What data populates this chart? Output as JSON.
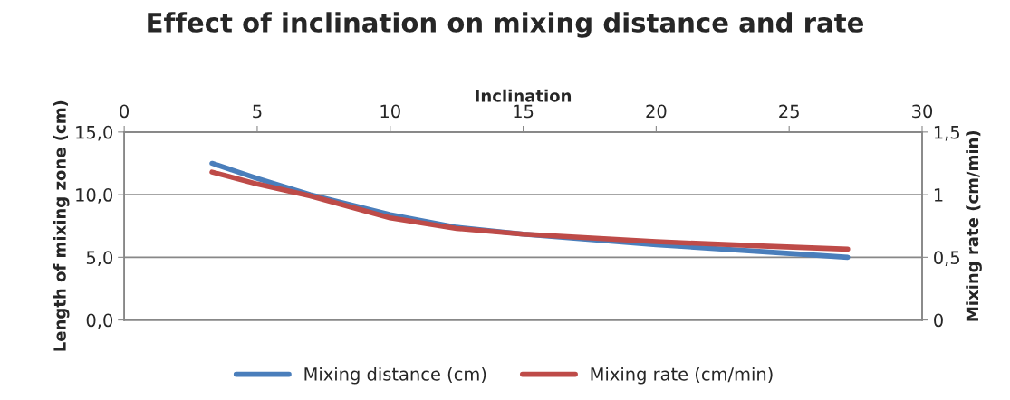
{
  "chart_data": {
    "type": "line",
    "title": "Effect of inclination on mixing distance and rate",
    "xlabel": "Inclination",
    "ylabel": "Length of mixing zone (cm)",
    "y2label": "Mixing rate (cm/min)",
    "series": [
      {
        "name": "Mixing distance (cm)",
        "color": "#4a7ebb",
        "x": [
          3.3,
          5,
          7,
          10,
          12.5,
          15,
          20,
          24,
          27.2
        ],
        "values": [
          12.5,
          11.3,
          10.0,
          8.4,
          7.4,
          6.85,
          6.0,
          5.45,
          5.0
        ]
      },
      {
        "name": "Mixing rate (cm/min)",
        "color": "#be4b48",
        "axis": "y2",
        "x": [
          3.3,
          5,
          7,
          10,
          12.5,
          15,
          20,
          24,
          27.2
        ],
        "values": [
          1.18,
          1.085,
          0.99,
          0.815,
          0.73,
          0.685,
          0.625,
          0.59,
          0.565
        ]
      }
    ],
    "xlim": [
      0,
      30
    ],
    "xticks": [
      0,
      5,
      10,
      15,
      20,
      25,
      30
    ],
    "ylim": [
      0,
      15
    ],
    "yticks": [
      {
        "value": 0,
        "label": "0,0"
      },
      {
        "value": 5,
        "label": "5,0"
      },
      {
        "value": 10,
        "label": "10,0"
      },
      {
        "value": 15,
        "label": "15,0"
      }
    ],
    "y2lim": [
      0,
      1.5
    ],
    "y2ticks": [
      0,
      {
        "value": 0.5,
        "label": "0,5"
      },
      1,
      {
        "value": 1.5,
        "label": "1,5"
      }
    ],
    "grid": "y",
    "legend": "bottom",
    "marker": "none",
    "line_style": "solid"
  }
}
